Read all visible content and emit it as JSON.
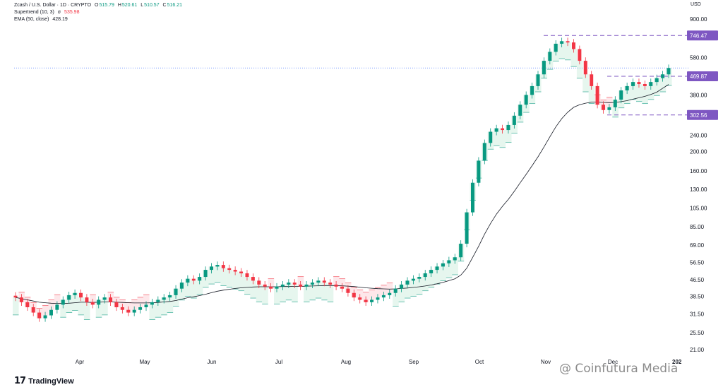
{
  "legend": {
    "symbol": "Zcash / U.S. Dollar · 1D · CRYPTO",
    "o_label": "O",
    "o": "515.79",
    "h_label": "H",
    "h": "520.61",
    "l_label": "L",
    "l": "510.57",
    "c_label": "C",
    "c": "516.21",
    "supertrend_label": "Supertrend (10, 3)",
    "supertrend_symbol": "σ",
    "supertrend_value": "535.98",
    "ema_label": "EMA (50, close)",
    "ema_value": "428.19"
  },
  "axis_currency": "USD",
  "brand": {
    "logo_mark": "17",
    "name": "TradingView"
  },
  "watermark": "@ Coinfutura Media",
  "year_fragment": "202",
  "colors": {
    "up": "#089981",
    "down": "#f23645",
    "up_fill": "#e6f6ee",
    "down_fill": "#fde7ea",
    "ema": "#131722",
    "price_line": "#2962ff",
    "label_bg": "#7e57c2",
    "dash": "#7e57c2"
  },
  "chart_data": {
    "type": "candlestick",
    "scale": "log",
    "y_ticks": [
      900.0,
      580.0,
      380.0,
      240.0,
      200.0,
      160.0,
      130.0,
      105.0,
      85.0,
      69.0,
      56.5,
      46.5,
      38.5,
      31.5,
      25.5,
      21.0
    ],
    "y_tick_labels": [
      "900.00",
      "580.00",
      "380.00",
      "240.00",
      "200.00",
      "160.00",
      "130.00",
      "105.00",
      "85.00",
      "69.00",
      "56.50",
      "46.50",
      "38.50",
      "31.50",
      "25.50",
      "21.00"
    ],
    "x_labels": [
      "Apr",
      "May",
      "Jun",
      "Jul",
      "Aug",
      "Sep",
      "Oct",
      "Nov",
      "Dec"
    ],
    "price_labels": [
      {
        "value": 746.47,
        "text": "746.47"
      },
      {
        "value": 469.87,
        "text": "469.87"
      },
      {
        "value": 302.56,
        "text": "302.56"
      }
    ],
    "high_marker": 746.47,
    "low_marker": 302.56,
    "current_price": 516.21,
    "close_series": [
      38,
      36,
      34,
      32,
      30,
      31,
      33,
      35,
      37,
      39,
      40,
      38,
      36,
      35,
      37,
      38,
      36,
      34,
      33,
      32,
      33,
      34,
      35,
      36,
      37,
      38,
      39,
      42,
      45,
      47,
      46,
      48,
      52,
      54,
      55,
      53,
      52,
      51,
      50,
      48,
      46,
      44,
      43,
      42,
      43,
      44,
      45,
      44,
      43,
      44,
      45,
      46,
      45,
      44,
      43,
      42,
      40,
      38,
      37,
      36,
      37,
      38,
      39,
      40,
      42,
      44,
      46,
      47,
      48,
      50,
      52,
      54,
      56,
      58,
      60,
      70,
      100,
      140,
      180,
      220,
      250,
      260,
      255,
      270,
      300,
      340,
      380,
      420,
      480,
      560,
      620,
      680,
      700,
      690,
      640,
      560,
      480,
      420,
      340,
      320,
      330,
      360,
      400,
      420,
      440,
      430,
      420,
      440,
      460,
      480,
      516
    ],
    "ema_series": [
      38,
      37.5,
      37,
      36.5,
      36,
      35.8,
      35.6,
      35.5,
      35.5,
      35.6,
      35.8,
      36,
      36,
      35.9,
      36,
      36.1,
      36.1,
      36,
      35.9,
      35.8,
      35.7,
      35.7,
      35.7,
      35.8,
      35.9,
      36.1,
      36.3,
      36.7,
      37.3,
      37.9,
      38.3,
      38.8,
      39.4,
      40.1,
      40.8,
      41.3,
      41.7,
      42.1,
      42.4,
      42.6,
      42.8,
      42.9,
      42.9,
      42.9,
      42.9,
      43,
      43,
      43.1,
      43.1,
      43.2,
      43.3,
      43.4,
      43.5,
      43.5,
      43.5,
      43.4,
      43.2,
      43,
      42.7,
      42.4,
      42.2,
      42,
      41.9,
      41.8,
      41.9,
      42.1,
      42.3,
      42.6,
      42.9,
      43.3,
      43.8,
      44.4,
      45.1,
      46,
      47,
      49,
      53,
      60,
      68,
      78,
      88,
      98,
      107,
      116,
      127,
      140,
      154,
      170,
      188,
      210,
      236,
      264,
      290,
      312,
      330,
      340,
      346,
      350,
      350,
      349,
      348,
      349,
      352,
      356,
      362,
      368,
      374,
      382,
      392,
      410,
      428
    ]
  }
}
